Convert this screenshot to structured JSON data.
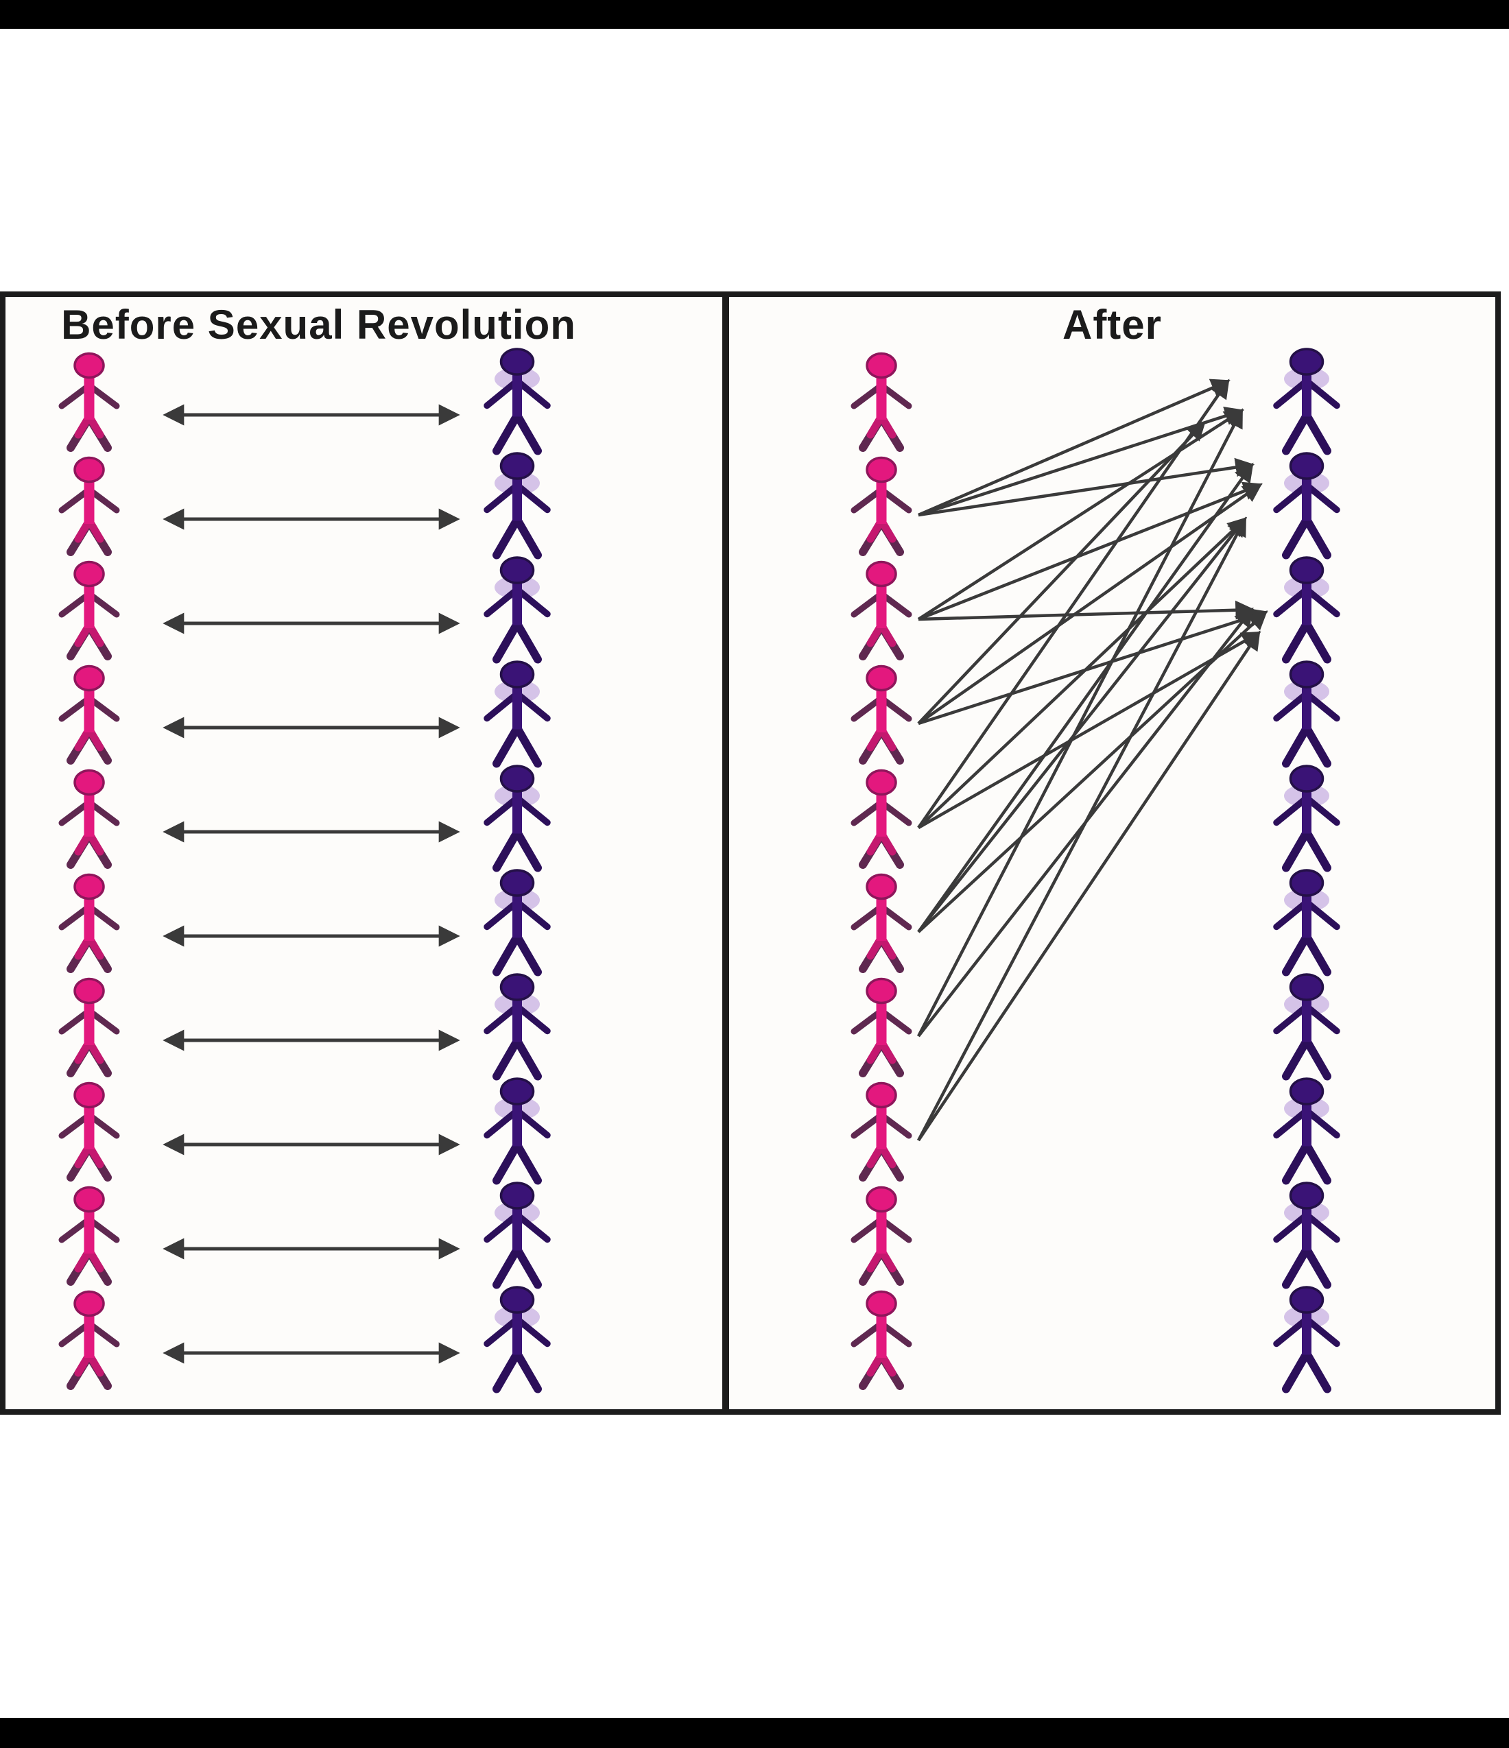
{
  "image": {
    "kind": "two-panel comparison meme diagram",
    "letterbox_bar_color": "#000000",
    "background_color": "#ffffff"
  },
  "diagram": {
    "border_color": "#1c1c1c",
    "panel_background": "#fdfcfa"
  },
  "panels": [
    {
      "id": "before",
      "title": "Before Sexual Revolution",
      "female_count": 10,
      "male_count": 10,
      "pairing": "one-to-one",
      "arrow_style": "double-headed"
    },
    {
      "id": "after",
      "title": "After",
      "female_count": 10,
      "male_count": 10,
      "pairing": "many-to-few",
      "arrow_style": "single-headed",
      "connections": [
        {
          "from_female": 2,
          "to_male": 1,
          "slot": 0
        },
        {
          "from_female": 2,
          "to_male": 1,
          "slot": 1
        },
        {
          "from_female": 2,
          "to_male": 2,
          "slot": 0
        },
        {
          "from_female": 3,
          "to_male": 1,
          "slot": 1
        },
        {
          "from_female": 3,
          "to_male": 2,
          "slot": 1
        },
        {
          "from_female": 3,
          "to_male": 3,
          "slot": 0
        },
        {
          "from_female": 4,
          "to_male": 1,
          "slot": 2
        },
        {
          "from_female": 4,
          "to_male": 2,
          "slot": 1
        },
        {
          "from_female": 4,
          "to_male": 3,
          "slot": 1
        },
        {
          "from_female": 5,
          "to_male": 1,
          "slot": 0
        },
        {
          "from_female": 5,
          "to_male": 2,
          "slot": 2
        },
        {
          "from_female": 5,
          "to_male": 3,
          "slot": 2
        },
        {
          "from_female": 6,
          "to_male": 2,
          "slot": 0
        },
        {
          "from_female": 6,
          "to_male": 2,
          "slot": 2
        },
        {
          "from_female": 6,
          "to_male": 3,
          "slot": 1
        },
        {
          "from_female": 7,
          "to_male": 1,
          "slot": 1
        },
        {
          "from_female": 7,
          "to_male": 3,
          "slot": 0
        },
        {
          "from_female": 8,
          "to_male": 2,
          "slot": 2
        },
        {
          "from_female": 8,
          "to_male": 3,
          "slot": 2
        }
      ]
    }
  ],
  "colors": {
    "female_body": "#e3187e",
    "female_limb": "#5f2850",
    "female_leg": "#c4186f",
    "female_edge": "#8e165b",
    "male_body": "#3a1376",
    "male_limb": "#2c0f5a",
    "male_edge": "#241047",
    "male_halo": "#a57fd2",
    "arrow": "#3a3a3a"
  }
}
